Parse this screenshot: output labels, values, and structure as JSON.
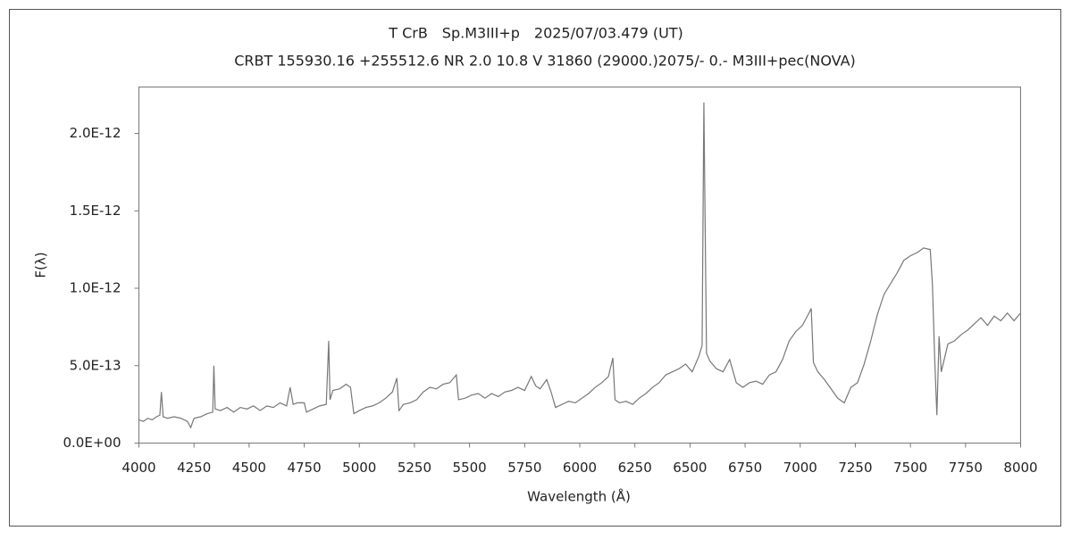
{
  "chart_data": {
    "type": "line",
    "title": "T CrB　Sp.M3III+p　2025/07/03.479 (UT)",
    "subtitle": "CRBT 155930.16 +255512.6 NR 2.0 10.8 V 31860 (29000.)2075/-  0.- M3III+pec(NOVA)",
    "x_label": "Wavelength (Å)",
    "y_label": "F(λ)",
    "xlim": [
      4000,
      8000
    ],
    "xticks": [
      4000,
      4250,
      4500,
      4750,
      5000,
      5250,
      5500,
      5750,
      6000,
      6250,
      6500,
      6750,
      7000,
      7250,
      7500,
      7750,
      8000
    ],
    "ylim": [
      0,
      2.3e-12
    ],
    "yticks": [
      {
        "value": 0,
        "label": "0.0E+00"
      },
      {
        "value": 5e-13,
        "label": "5.0E-13"
      },
      {
        "value": 1e-12,
        "label": "1.0E-12"
      },
      {
        "value": 1.5e-12,
        "label": "1.5E-12"
      },
      {
        "value": 2e-12,
        "label": "2.0E-12"
      }
    ],
    "grid": false,
    "color": "#777777",
    "x": [
      4000,
      4020,
      4040,
      4060,
      4080,
      4095,
      4102,
      4110,
      4130,
      4160,
      4190,
      4220,
      4235,
      4250,
      4280,
      4310,
      4335,
      4340,
      4346,
      4370,
      4400,
      4430,
      4460,
      4490,
      4520,
      4550,
      4580,
      4610,
      4640,
      4670,
      4686,
      4700,
      4720,
      4750,
      4760,
      4790,
      4820,
      4850,
      4861,
      4867,
      4880,
      4910,
      4940,
      4960,
      4975,
      5000,
      5030,
      5060,
      5090,
      5120,
      5150,
      5170,
      5180,
      5200,
      5230,
      5260,
      5290,
      5320,
      5350,
      5380,
      5410,
      5440,
      5450,
      5480,
      5510,
      5540,
      5570,
      5600,
      5630,
      5660,
      5690,
      5720,
      5750,
      5780,
      5800,
      5820,
      5850,
      5870,
      5890,
      5920,
      5950,
      5980,
      6010,
      6040,
      6070,
      6100,
      6130,
      6150,
      6160,
      6180,
      6210,
      6240,
      6270,
      6300,
      6330,
      6360,
      6390,
      6420,
      6450,
      6480,
      6510,
      6540,
      6555,
      6563,
      6567,
      6575,
      6590,
      6620,
      6650,
      6680,
      6710,
      6740,
      6770,
      6800,
      6830,
      6860,
      6890,
      6920,
      6950,
      6980,
      7010,
      7040,
      7050,
      7060,
      7080,
      7110,
      7140,
      7170,
      7200,
      7230,
      7260,
      7290,
      7320,
      7350,
      7380,
      7410,
      7440,
      7470,
      7500,
      7530,
      7560,
      7590,
      7600,
      7610,
      7620,
      7630,
      7640,
      7670,
      7700,
      7730,
      7760,
      7790,
      7820,
      7850,
      7880,
      7910,
      7940,
      7970,
      8000
    ],
    "values": [
      1.5e-13,
      1.4e-13,
      1.6e-13,
      1.5e-13,
      1.7e-13,
      1.8e-13,
      3.3e-13,
      1.7e-13,
      1.6e-13,
      1.7e-13,
      1.6e-13,
      1.4e-13,
      1e-13,
      1.6e-13,
      1.7e-13,
      1.9e-13,
      2e-13,
      5e-13,
      2.2e-13,
      2.1e-13,
      2.3e-13,
      2e-13,
      2.3e-13,
      2.2e-13,
      2.4e-13,
      2.1e-13,
      2.4e-13,
      2.3e-13,
      2.6e-13,
      2.4e-13,
      3.6e-13,
      2.5e-13,
      2.6e-13,
      2.6e-13,
      2e-13,
      2.2e-13,
      2.4e-13,
      2.5e-13,
      6.6e-13,
      2.8e-13,
      3.4e-13,
      3.5e-13,
      3.8e-13,
      3.6e-13,
      1.9e-13,
      2.1e-13,
      2.3e-13,
      2.4e-13,
      2.6e-13,
      2.9e-13,
      3.3e-13,
      4.2e-13,
      2.1e-13,
      2.5e-13,
      2.6e-13,
      2.8e-13,
      3.3e-13,
      3.6e-13,
      3.5e-13,
      3.8e-13,
      3.9e-13,
      4.4e-13,
      2.8e-13,
      2.9e-13,
      3.1e-13,
      3.2e-13,
      2.9e-13,
      3.2e-13,
      3e-13,
      3.3e-13,
      3.4e-13,
      3.6e-13,
      3.4e-13,
      4.3e-13,
      3.7e-13,
      3.5e-13,
      4.1e-13,
      3.3e-13,
      2.3e-13,
      2.5e-13,
      2.7e-13,
      2.6e-13,
      2.9e-13,
      3.2e-13,
      3.6e-13,
      3.9e-13,
      4.3e-13,
      5.5e-13,
      2.8e-13,
      2.6e-13,
      2.7e-13,
      2.5e-13,
      2.9e-13,
      3.2e-13,
      3.6e-13,
      3.9e-13,
      4.4e-13,
      4.6e-13,
      4.8e-13,
      5.1e-13,
      4.6e-13,
      5.6e-13,
      6.3e-13,
      2.2e-12,
      1.65e-12,
      5.8e-13,
      5.3e-13,
      4.8e-13,
      4.6e-13,
      5.4e-13,
      3.9e-13,
      3.6e-13,
      3.9e-13,
      4e-13,
      3.8e-13,
      4.4e-13,
      4.6e-13,
      5.4e-13,
      6.6e-13,
      7.2e-13,
      7.6e-13,
      8.4e-13,
      8.7e-13,
      5.2e-13,
      4.6e-13,
      4.1e-13,
      3.5e-13,
      2.9e-13,
      2.6e-13,
      3.6e-13,
      3.9e-13,
      5.1e-13,
      6.6e-13,
      8.3e-13,
      9.6e-13,
      1.03e-12,
      1.1e-12,
      1.18e-12,
      1.21e-12,
      1.23e-12,
      1.26e-12,
      1.25e-12,
      1.02e-12,
      5.5e-13,
      1.8e-13,
      6.9e-13,
      4.6e-13,
      6.4e-13,
      6.6e-13,
      7e-13,
      7.3e-13,
      7.7e-13,
      8.1e-13,
      7.6e-13,
      8.2e-13,
      7.9e-13,
      8.4e-13,
      7.9e-13,
      8.4e-13
    ]
  }
}
